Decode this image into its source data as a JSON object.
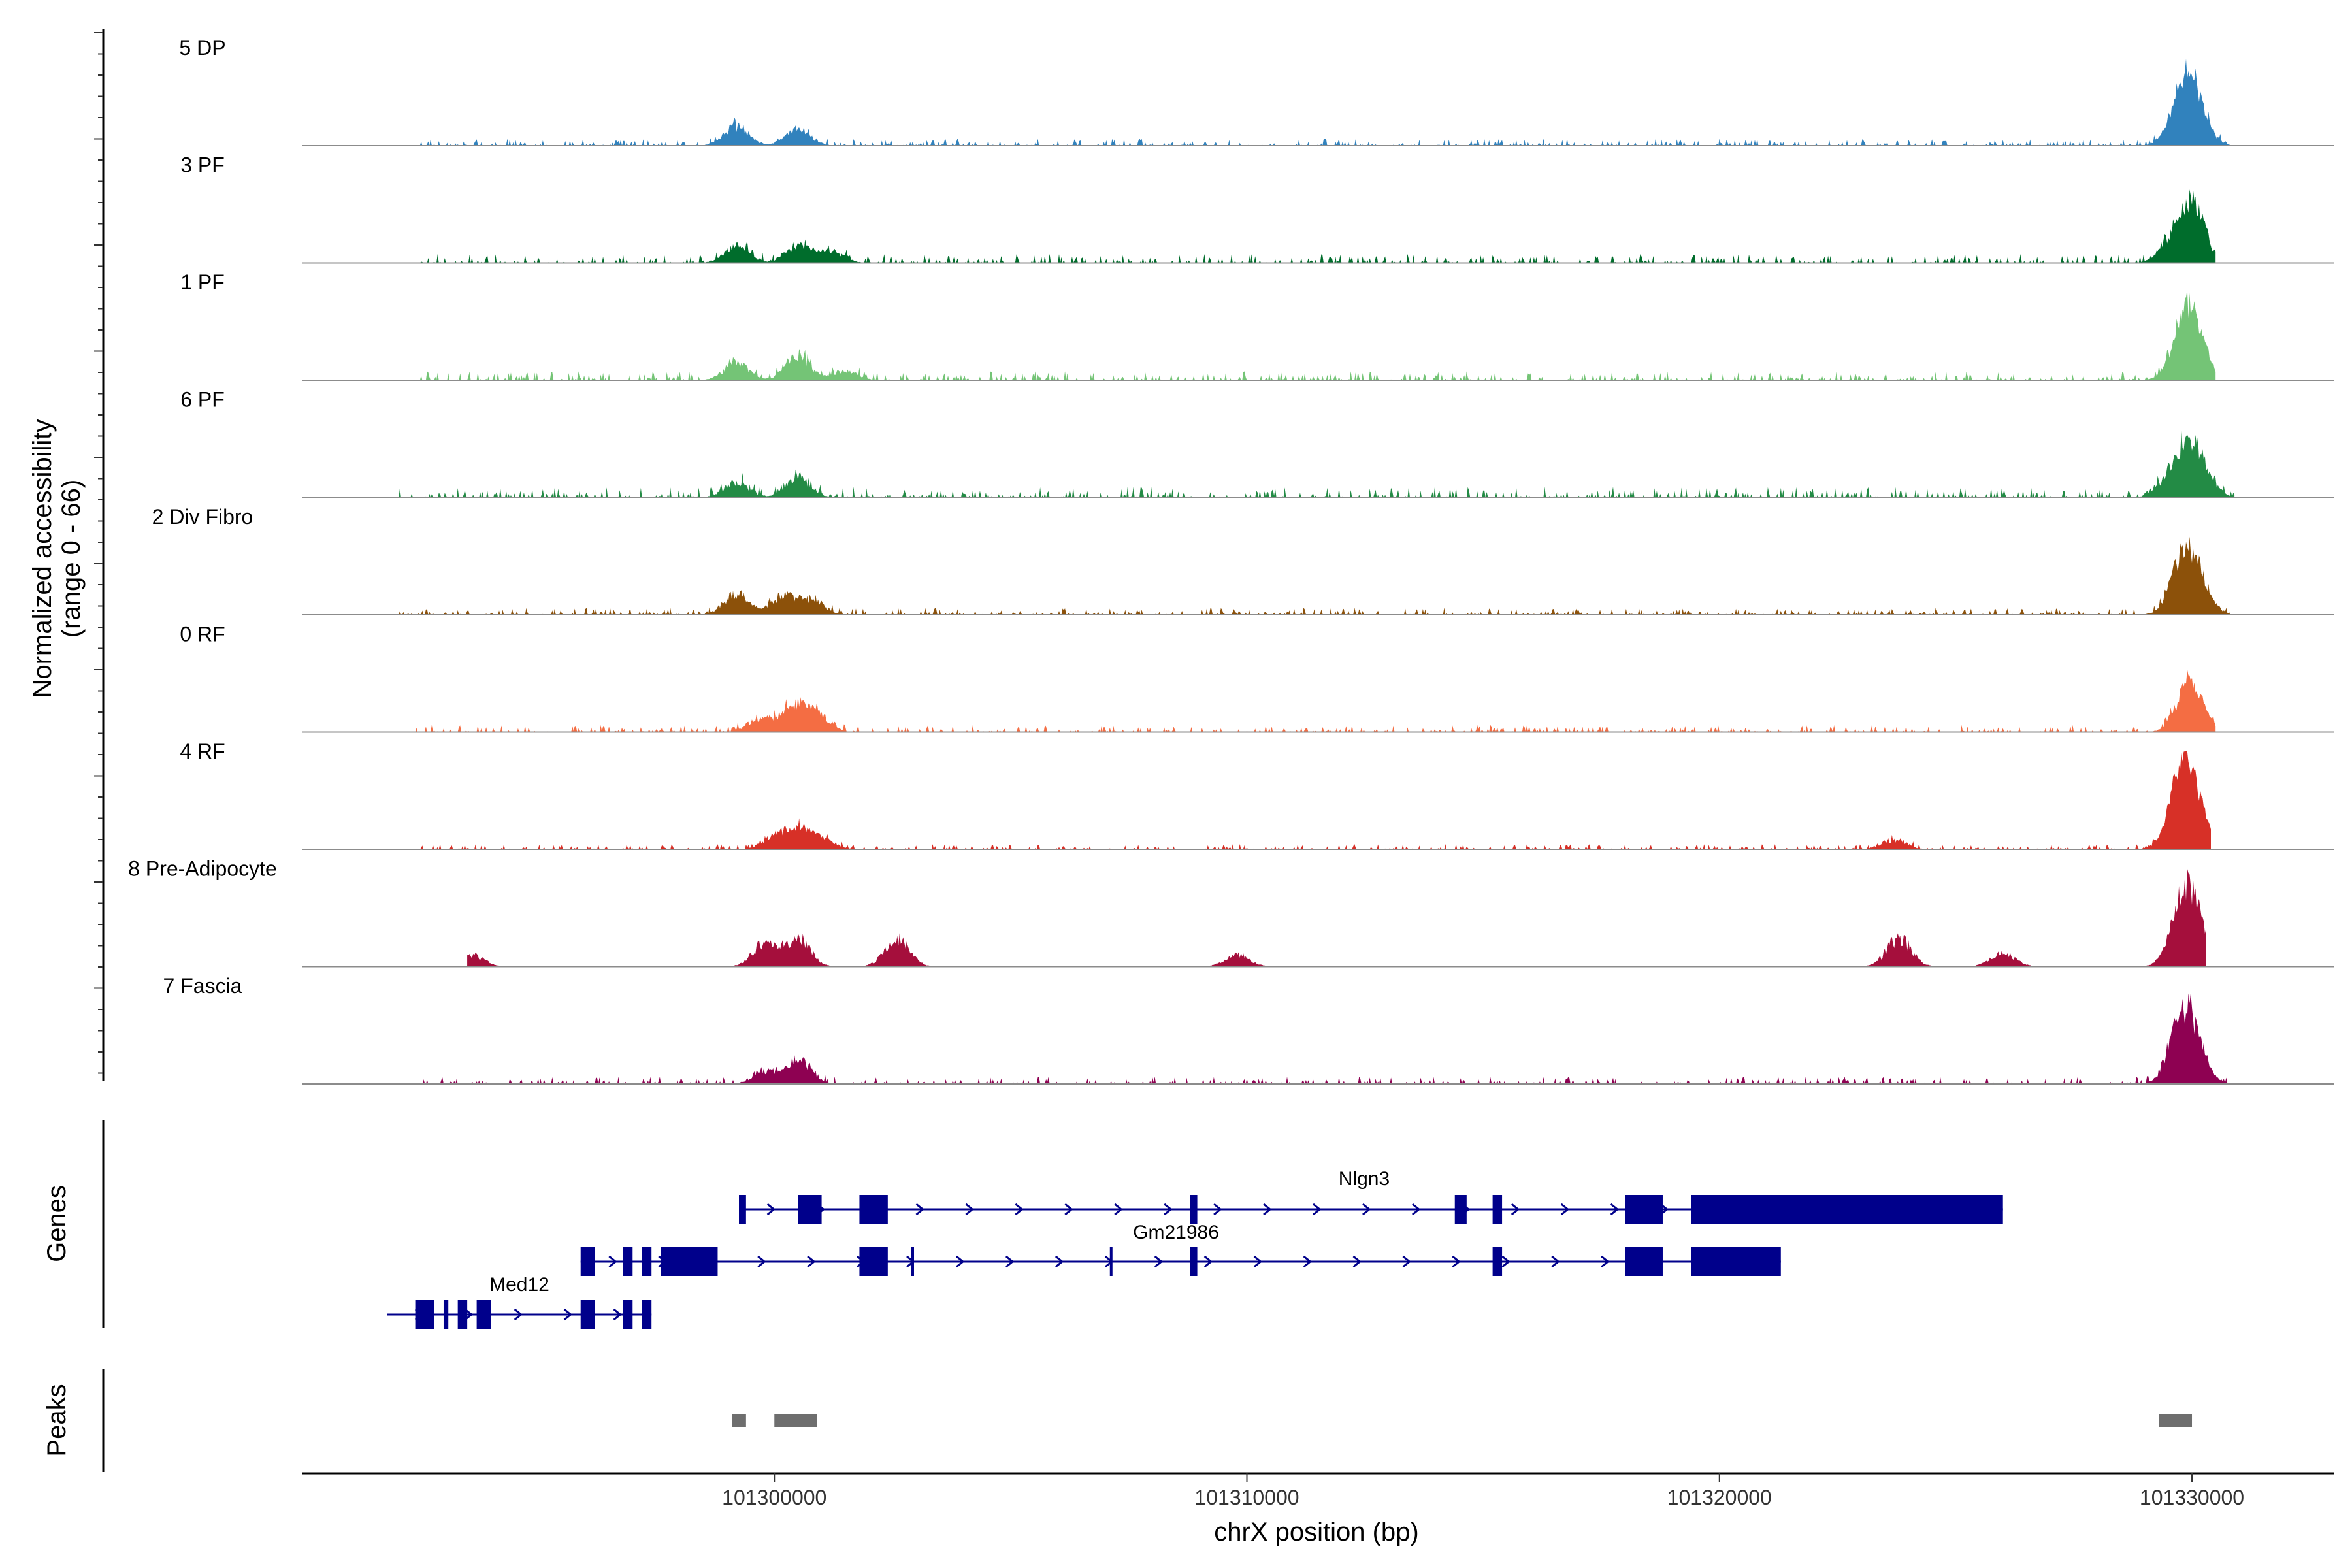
{
  "figure": {
    "y_axis_title_line1": "Normalized accessibility",
    "y_axis_title_line2": "(range 0 - 66)",
    "genes_title": "Genes",
    "peaks_title": "Peaks",
    "x_axis_title": "chrX position (bp)"
  },
  "chart_data": {
    "type": "area",
    "x": {
      "label": "chrX position (bp)",
      "range": [
        101290000,
        101333000
      ],
      "ticks": [
        101300000,
        101310000,
        101320000,
        101330000
      ]
    },
    "y": {
      "label": "Normalized accessibility (range 0 - 66)",
      "range": [
        0,
        66
      ]
    },
    "series": [
      {
        "name": "5 DP",
        "color": "#3182bd",
        "peaks": [
          [
            101299200,
            16
          ],
          [
            101300500,
            14
          ],
          [
            101329700,
            18
          ],
          [
            101329900,
            33
          ],
          [
            101330100,
            22
          ]
        ],
        "background": {
          "from": 101292500,
          "to": 101330800,
          "level": 4
        }
      },
      {
        "name": "3 PF",
        "color": "#006d2c",
        "peaks": [
          [
            101299200,
            14
          ],
          [
            101300500,
            15
          ],
          [
            101301200,
            10
          ],
          [
            101329500,
            10
          ],
          [
            101329900,
            36
          ],
          [
            101330100,
            20
          ]
        ],
        "background": {
          "from": 101292500,
          "to": 101330500,
          "level": 5
        }
      },
      {
        "name": "1 PF",
        "color": "#74c476",
        "peaks": [
          [
            101299200,
            14
          ],
          [
            101300500,
            20
          ],
          [
            101301500,
            8
          ],
          [
            101329700,
            10
          ],
          [
            101329900,
            46
          ],
          [
            101330100,
            16
          ]
        ],
        "background": {
          "from": 101292500,
          "to": 101330500,
          "level": 5
        }
      },
      {
        "name": "6 PF",
        "color": "#238b45",
        "peaks": [
          [
            101299200,
            13
          ],
          [
            101300500,
            16
          ],
          [
            101329500,
            12
          ],
          [
            101329900,
            34
          ],
          [
            101330200,
            20
          ]
        ],
        "background": {
          "from": 101292000,
          "to": 101330900,
          "level": 6
        }
      },
      {
        "name": "2 Div Fibro",
        "color": "#8c510a",
        "peaks": [
          [
            101299200,
            18
          ],
          [
            101300200,
            16
          ],
          [
            101300800,
            12
          ],
          [
            101329700,
            14
          ],
          [
            101329900,
            40
          ],
          [
            101330200,
            14
          ]
        ],
        "background": {
          "from": 101292000,
          "to": 101330800,
          "level": 4
        }
      },
      {
        "name": "0 RF",
        "color": "#f46d43",
        "peaks": [
          [
            101299700,
            12
          ],
          [
            101300400,
            22
          ],
          [
            101300900,
            14
          ],
          [
            101329900,
            30
          ],
          [
            101330100,
            14
          ]
        ],
        "background": {
          "from": 101292300,
          "to": 101330500,
          "level": 4
        }
      },
      {
        "name": "4 RF",
        "color": "#d73027",
        "peaks": [
          [
            101300000,
            10
          ],
          [
            101300500,
            18
          ],
          [
            101301000,
            8
          ],
          [
            101323700,
            8
          ],
          [
            101329700,
            30
          ],
          [
            101329900,
            44
          ],
          [
            101330100,
            18
          ]
        ],
        "background": {
          "from": 101292300,
          "to": 101330400,
          "level": 3
        }
      },
      {
        "name": "8 Pre-Adipocyte",
        "color": "#a50f3c",
        "peaks": [
          [
            101293600,
            10
          ],
          [
            101299800,
            20
          ],
          [
            101300500,
            24
          ],
          [
            101302600,
            24
          ],
          [
            101309800,
            10
          ],
          [
            101323800,
            24
          ],
          [
            101326000,
            12
          ],
          [
            101329700,
            16
          ],
          [
            101329900,
            46
          ],
          [
            101330100,
            20
          ]
        ],
        "background": {
          "from": 101293500,
          "to": 101330300,
          "level": 0
        }
      },
      {
        "name": "7 Fascia",
        "color": "#8e0152",
        "peaks": [
          [
            101299800,
            10
          ],
          [
            101300500,
            22
          ],
          [
            101329700,
            24
          ],
          [
            101329900,
            40
          ],
          [
            101330100,
            14
          ]
        ],
        "background": {
          "from": 101292300,
          "to": 101330800,
          "level": 4
        }
      }
    ],
    "genes": [
      {
        "name": "Nlgn3",
        "strand": "+",
        "start": 101299250,
        "end": 101326000,
        "exons": [
          [
            101299250,
            101299400
          ],
          [
            101300500,
            101301000
          ],
          [
            101301800,
            101302400
          ],
          [
            101308800,
            101308950
          ],
          [
            101314400,
            101314650
          ],
          [
            101315200,
            101315400
          ],
          [
            101318000,
            101318800
          ],
          [
            101319400,
            101326000
          ]
        ]
      },
      {
        "name": "Gm21986",
        "strand": "+",
        "start": 101295900,
        "end": 101321300,
        "exons": [
          [
            101295900,
            101296200
          ],
          [
            101296800,
            101297000
          ],
          [
            101297200,
            101297400
          ],
          [
            101297600,
            101298800
          ],
          [
            101301800,
            101302400
          ],
          [
            101302900,
            101302950
          ],
          [
            101307100,
            101307150
          ],
          [
            101308800,
            101308950
          ],
          [
            101315200,
            101315400
          ],
          [
            101318000,
            101318800
          ],
          [
            101319400,
            101321300
          ]
        ]
      },
      {
        "name": "Med12",
        "strand": "+",
        "start": 101291800,
        "end": 101297400,
        "exons": [
          [
            101292400,
            101292800
          ],
          [
            101293000,
            101293100
          ],
          [
            101293300,
            101293500
          ],
          [
            101293700,
            101294000
          ],
          [
            101295900,
            101296200
          ],
          [
            101296800,
            101297000
          ],
          [
            101297200,
            101297400
          ]
        ]
      }
    ],
    "peaks": [
      [
        101299100,
        101299400
      ],
      [
        101300000,
        101300900
      ],
      [
        101329300,
        101330000
      ]
    ]
  }
}
